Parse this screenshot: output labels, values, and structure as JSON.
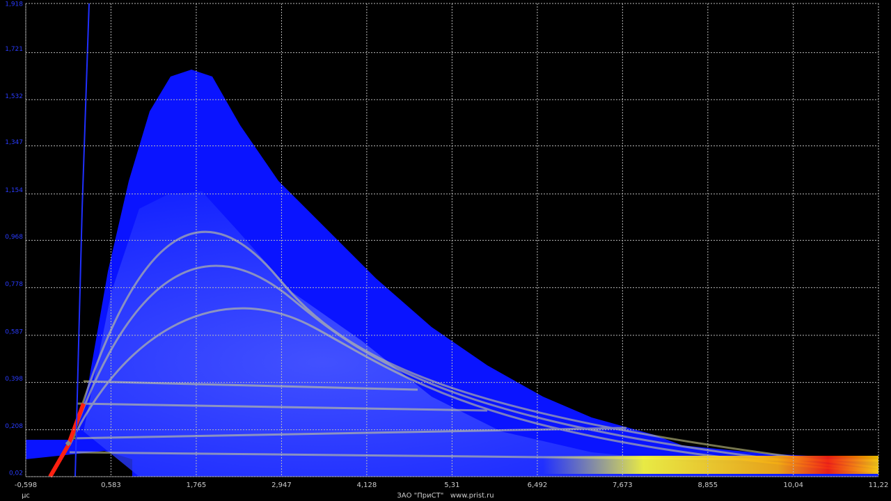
{
  "chart_data": {
    "type": "heatmap",
    "xlim": [
      -0.598,
      11.22
    ],
    "ylim": [
      0.02,
      1.918
    ],
    "xticks": [
      {
        "value": -0.598,
        "label": "-0,598"
      },
      {
        "value": 0.583,
        "label": "0,583"
      },
      {
        "value": 1.765,
        "label": "1,765"
      },
      {
        "value": 2.947,
        "label": "2,947"
      },
      {
        "value": 4.128,
        "label": "4,128"
      },
      {
        "value": 5.31,
        "label": "5,31"
      },
      {
        "value": 6.492,
        "label": "6,492"
      },
      {
        "value": 7.673,
        "label": "7,673"
      },
      {
        "value": 8.855,
        "label": "8,855"
      },
      {
        "value": 10.04,
        "label": "10,04"
      },
      {
        "value": 11.22,
        "label": "11,22"
      }
    ],
    "yticks": [
      {
        "value": 0.02,
        "label": "0,02"
      },
      {
        "value": 0.208,
        "label": "0,208"
      },
      {
        "value": 0.398,
        "label": "0,398"
      },
      {
        "value": 0.587,
        "label": "0,587"
      },
      {
        "value": 0.778,
        "label": "0,778"
      },
      {
        "value": 0.968,
        "label": "0,968"
      },
      {
        "value": 1.154,
        "label": "1,154"
      },
      {
        "value": 1.347,
        "label": "1,347"
      },
      {
        "value": 1.532,
        "label": "1,532"
      },
      {
        "value": 1.721,
        "label": "1,721"
      },
      {
        "value": 1.918,
        "label": "1,918"
      }
    ],
    "x_label": "μс",
    "footer": "ЗАО \"ПриСТ\"   www.prist.ru",
    "grid": true
  }
}
